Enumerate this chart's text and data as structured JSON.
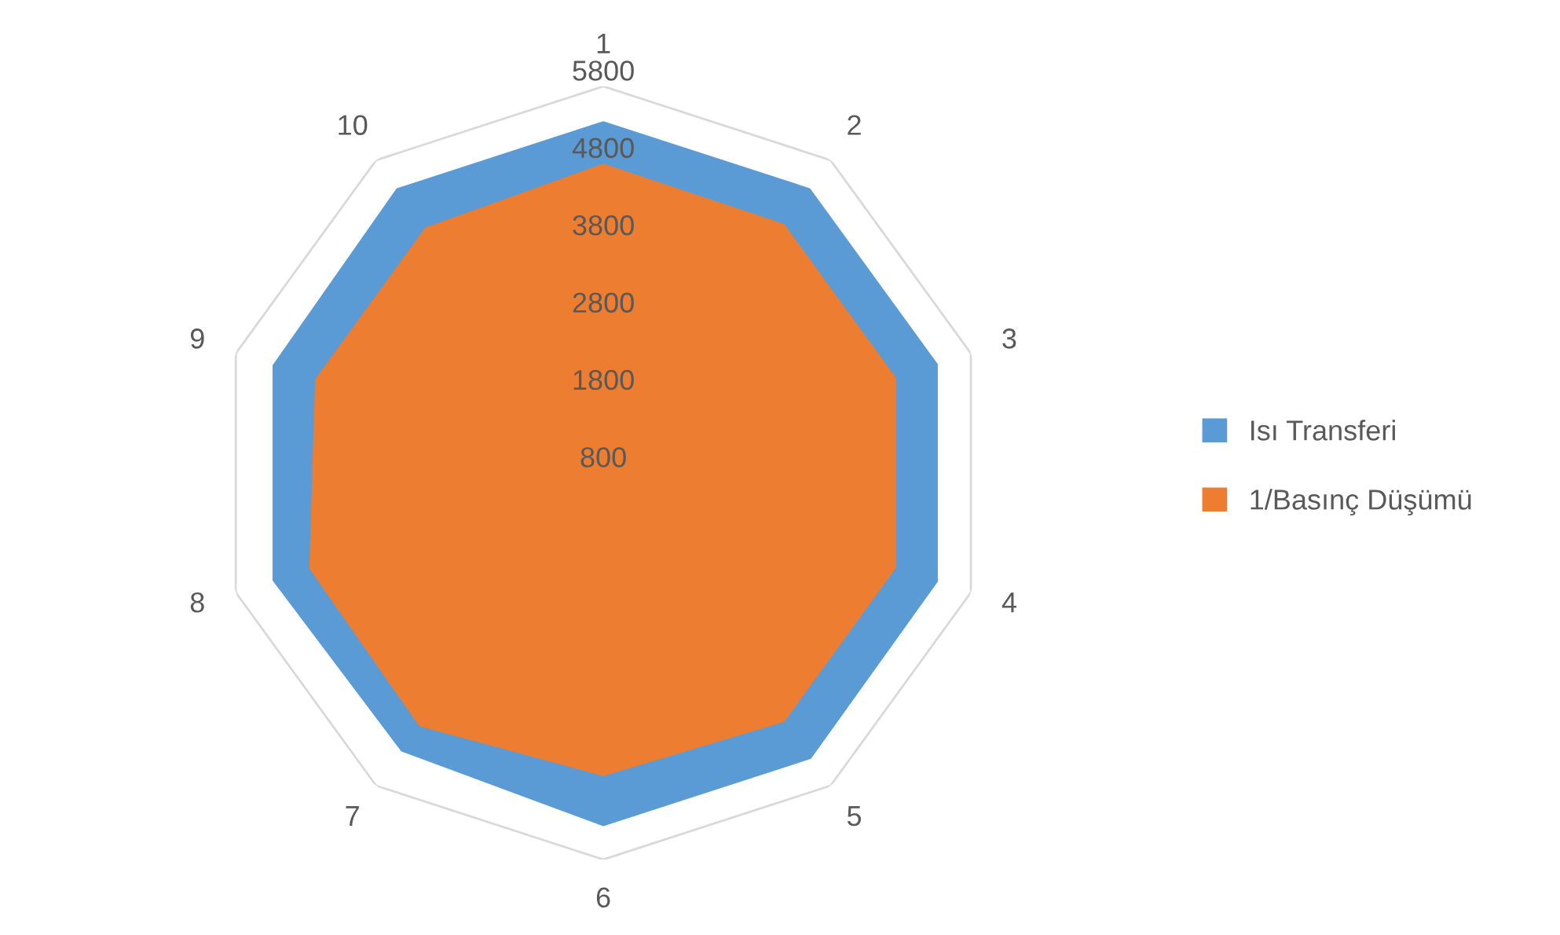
{
  "chart_data": {
    "type": "radar",
    "categories": [
      "1",
      "2",
      "3",
      "4",
      "5",
      "6",
      "7",
      "8",
      "9",
      "10"
    ],
    "series": [
      {
        "name": "Isı Transferi",
        "color": "#5b9bd5",
        "values": [
          5350,
          5350,
          5350,
          5350,
          5370,
          5370,
          5250,
          5300,
          5300,
          5350
        ]
      },
      {
        "name": "1/Basınç Düşümü",
        "color": "#ed7d31",
        "values": [
          4800,
          4780,
          4780,
          4780,
          4780,
          4720,
          4850,
          4800,
          4720,
          4720
        ]
      }
    ],
    "ylim": [
      800,
      5800
    ],
    "yticks": [
      800,
      1800,
      2800,
      3800,
      4800,
      5800
    ],
    "grid": false,
    "legend": "right"
  }
}
